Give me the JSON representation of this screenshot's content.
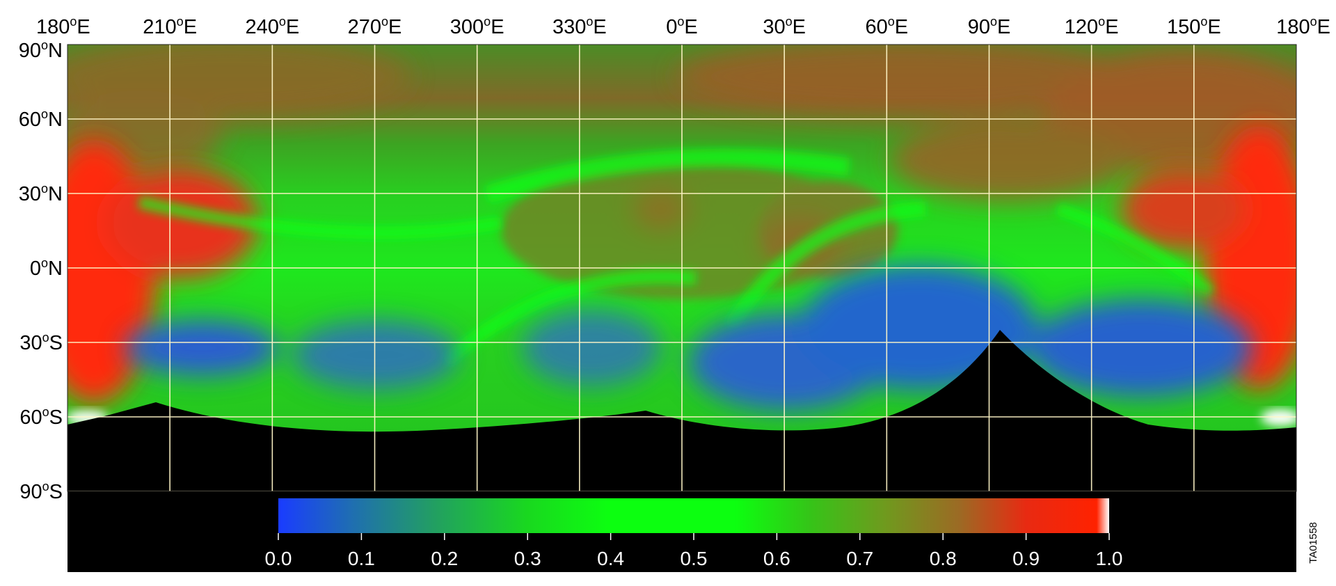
{
  "map": {
    "longitude_labels": [
      {
        "deg": "180",
        "sup": "o",
        "hem": "E"
      },
      {
        "deg": "210",
        "sup": "o",
        "hem": "E"
      },
      {
        "deg": "240",
        "sup": "o",
        "hem": "E"
      },
      {
        "deg": "270",
        "sup": "o",
        "hem": "E"
      },
      {
        "deg": "300",
        "sup": "o",
        "hem": "E"
      },
      {
        "deg": "330",
        "sup": "o",
        "hem": "E"
      },
      {
        "deg": "0",
        "sup": "o",
        "hem": "E"
      },
      {
        "deg": "30",
        "sup": "o",
        "hem": "E"
      },
      {
        "deg": "60",
        "sup": "o",
        "hem": "E"
      },
      {
        "deg": "90",
        "sup": "o",
        "hem": "E"
      },
      {
        "deg": "120",
        "sup": "o",
        "hem": "E"
      },
      {
        "deg": "150",
        "sup": "o",
        "hem": "E"
      },
      {
        "deg": "180",
        "sup": "o",
        "hem": "E"
      }
    ],
    "latitude_labels": [
      {
        "deg": "90",
        "sup": "o",
        "hem": "N"
      },
      {
        "deg": "60",
        "sup": "o",
        "hem": "N"
      },
      {
        "deg": "30",
        "sup": "o",
        "hem": "N"
      },
      {
        "deg": "0",
        "sup": "o",
        "hem": "N"
      },
      {
        "deg": "30",
        "sup": "o",
        "hem": "S"
      },
      {
        "deg": "60",
        "sup": "o",
        "hem": "S"
      },
      {
        "deg": "90",
        "sup": "o",
        "hem": "S"
      }
    ],
    "colorbar": {
      "ticks": [
        "0.0",
        "0.1",
        "0.2",
        "0.3",
        "0.4",
        "0.5",
        "0.6",
        "0.7",
        "0.8",
        "0.9",
        "1.0"
      ],
      "colors": [
        "#1a3cff",
        "#1f6fb0",
        "#22a060",
        "#19d81f",
        "#0cff10",
        "#0cff10",
        "#35c418",
        "#6f9a1e",
        "#9c6a24",
        "#e82a12",
        "#ff2200",
        "#ffffff"
      ]
    },
    "image_id": "TA01558",
    "colors": {
      "ocean_green": "#1ee81e",
      "highland_brown": "#8c6a2a",
      "red": "#ff2a10",
      "blue": "#2a5fcf",
      "grid": "#fff6c8",
      "nodata": "#000000"
    }
  }
}
